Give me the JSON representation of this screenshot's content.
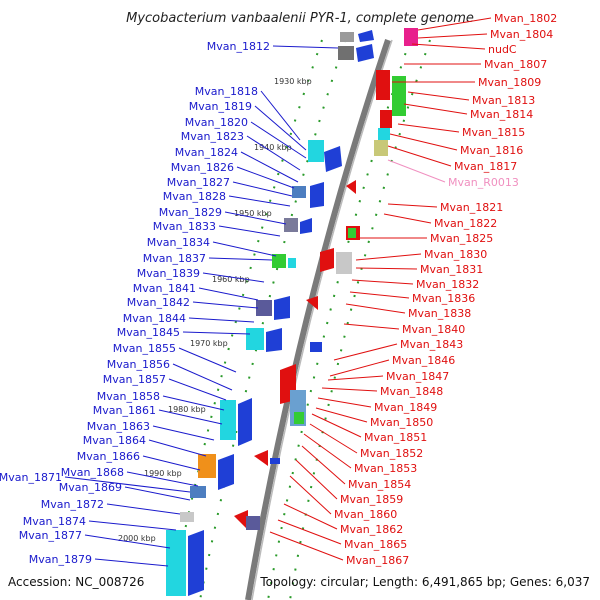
{
  "title": "Mycobacterium vanbaalenii PYR-1, complete genome",
  "footer": {
    "accession": "Accession: NC_008726",
    "summary": "Topology: circular; Length: 6,491,865 bp; Genes: 6,037"
  },
  "colors": {
    "left_label": "#1a1acc",
    "right_label": "#e01010",
    "rna_label": "#f090c0",
    "backbone": "#888888",
    "tick_dot": "#2a9a2a"
  },
  "ticks": [
    "1930 kbp",
    "1940 kbp",
    "1950 kbp",
    "1960 kbp",
    "1970 kbp",
    "1980 kbp",
    "1990 kbp",
    "2000 kbp"
  ],
  "left_genes": [
    "Mvan_1812",
    "Mvan_1818",
    "Mvan_1819",
    "Mvan_1820",
    "Mvan_1823",
    "Mvan_1824",
    "Mvan_1826",
    "Mvan_1827",
    "Mvan_1828",
    "Mvan_1829",
    "Mvan_1833",
    "Mvan_1834",
    "Mvan_1837",
    "Mvan_1839",
    "Mvan_1841",
    "Mvan_1842",
    "Mvan_1844",
    "Mvan_1845",
    "Mvan_1855",
    "Mvan_1856",
    "Mvan_1857",
    "Mvan_1858",
    "Mvan_1861",
    "Mvan_1863",
    "Mvan_1864",
    "Mvan_1866",
    "Mvan_1871",
    "Mvan_1868",
    "Mvan_1869",
    "Mvan_1872",
    "Mvan_1874",
    "Mvan_1877",
    "Mvan_1879"
  ],
  "right_genes": [
    "Mvan_1802",
    "Mvan_1804",
    "nudC",
    "Mvan_1807",
    "Mvan_1809",
    "Mvan_1813",
    "Mvan_1814",
    "Mvan_1815",
    "Mvan_1816",
    "Mvan_1817",
    "Mvan_R0013",
    "Mvan_1821",
    "Mvan_1822",
    "Mvan_1825",
    "Mvan_1830",
    "Mvan_1831",
    "Mvan_1832",
    "Mvan_1836",
    "Mvan_1838",
    "Mvan_1840",
    "Mvan_1843",
    "Mvan_1846",
    "Mvan_1847",
    "Mvan_1848",
    "Mvan_1849",
    "Mvan_1850",
    "Mvan_1851",
    "Mvan_1852",
    "Mvan_1853",
    "Mvan_1854",
    "Mvan_1859",
    "Mvan_1860",
    "Mvan_1862",
    "Mvan_1865",
    "Mvan_1867"
  ]
}
